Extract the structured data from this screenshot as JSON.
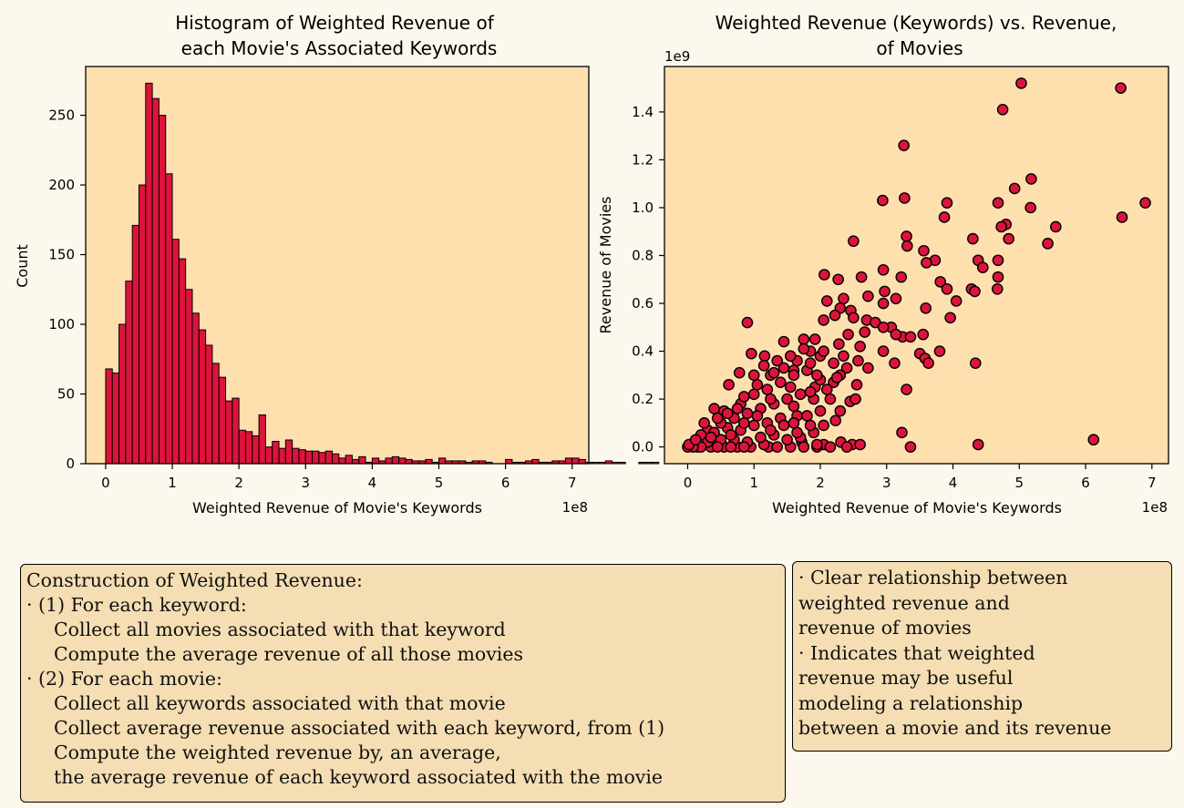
{
  "colors": {
    "figure_bg": "#fdf8ee",
    "axes_bg": "#fde0ae",
    "bar": "#dc143c",
    "point": "#dc143c",
    "edge": "#000000",
    "textbox_bg": "#f5deb3"
  },
  "chart_data": [
    {
      "type": "bar",
      "title_lines": [
        "Histogram of Weighted Revenue of",
        "each Movie's Associated Keywords"
      ],
      "xlabel": "Weighted Revenue of Movie's Keywords",
      "ylabel": "Count",
      "x_offset_text": "1e8",
      "xlim": [
        -0.3,
        7.25
      ],
      "ylim": [
        0,
        285
      ],
      "xticks": [
        0,
        1,
        2,
        3,
        4,
        5,
        6,
        7
      ],
      "yticks": [
        0,
        50,
        100,
        150,
        200,
        250
      ],
      "bin_start": 0,
      "bin_width": 0.1,
      "counts": [
        68,
        65,
        100,
        131,
        171,
        200,
        273,
        262,
        250,
        208,
        161,
        147,
        125,
        108,
        96,
        85,
        72,
        62,
        45,
        47,
        24,
        23,
        20,
        35,
        12,
        16,
        11,
        17,
        11,
        10,
        9,
        9,
        8,
        9,
        7,
        4,
        6,
        3,
        5,
        1,
        4,
        2,
        4,
        5,
        4,
        3,
        2,
        2,
        3,
        1,
        4,
        2,
        2,
        2,
        1,
        2,
        2,
        1,
        0,
        0,
        3,
        1,
        1,
        2,
        3,
        1,
        1,
        2,
        2,
        4,
        4,
        3,
        1,
        1,
        1,
        2,
        1,
        1,
        0,
        0,
        1,
        1,
        1,
        0,
        1,
        1,
        0,
        0,
        0,
        0,
        0,
        1,
        1,
        0,
        0,
        0,
        0,
        0,
        0,
        1,
        0,
        0,
        0,
        0,
        0,
        1,
        0,
        0,
        1,
        0
      ]
    },
    {
      "type": "scatter",
      "title_lines": [
        "Weighted Revenue (Keywords) vs. Revenue,",
        "of Movies"
      ],
      "xlabel": "Weighted Revenue of Movie's Keywords",
      "ylabel": "Revenue of Movies",
      "x_offset_text": "1e8",
      "y_offset_text": "1e9",
      "xlim": [
        -0.35,
        7.25
      ],
      "ylim": [
        -0.07,
        1.59
      ],
      "xticks": [
        0,
        1,
        2,
        3,
        4,
        5,
        6,
        7
      ],
      "yticks": [
        "0.0",
        "0.2",
        "0.4",
        "0.6",
        "0.8",
        "1.0",
        "1.2",
        "1.4"
      ],
      "points": [
        [
          5.03,
          1.52
        ],
        [
          6.53,
          1.5
        ],
        [
          4.75,
          1.41
        ],
        [
          3.26,
          1.26
        ],
        [
          5.18,
          1.12
        ],
        [
          4.93,
          1.08
        ],
        [
          3.27,
          1.04
        ],
        [
          2.94,
          1.03
        ],
        [
          3.91,
          1.02
        ],
        [
          4.68,
          1.02
        ],
        [
          6.9,
          1.02
        ],
        [
          5.17,
          1.0
        ],
        [
          4.8,
          0.93
        ],
        [
          4.73,
          0.92
        ],
        [
          5.55,
          0.92
        ],
        [
          6.55,
          0.96
        ],
        [
          3.87,
          0.96
        ],
        [
          3.3,
          0.88
        ],
        [
          4.3,
          0.87
        ],
        [
          4.84,
          0.87
        ],
        [
          2.5,
          0.86
        ],
        [
          5.43,
          0.85
        ],
        [
          3.31,
          0.84
        ],
        [
          3.56,
          0.82
        ],
        [
          3.73,
          0.78
        ],
        [
          4.38,
          0.78
        ],
        [
          4.68,
          0.78
        ],
        [
          3.6,
          0.77
        ],
        [
          4.45,
          0.75
        ],
        [
          2.95,
          0.74
        ],
        [
          3.22,
          0.71
        ],
        [
          2.62,
          0.71
        ],
        [
          4.68,
          0.71
        ],
        [
          2.06,
          0.72
        ],
        [
          2.27,
          0.7
        ],
        [
          3.81,
          0.69
        ],
        [
          3.91,
          0.66
        ],
        [
          4.28,
          0.66
        ],
        [
          4.33,
          0.65
        ],
        [
          4.67,
          0.66
        ],
        [
          2.97,
          0.65
        ],
        [
          2.72,
          0.63
        ],
        [
          3.14,
          0.62
        ],
        [
          2.35,
          0.62
        ],
        [
          2.95,
          0.6
        ],
        [
          2.1,
          0.61
        ],
        [
          2.3,
          0.58
        ],
        [
          2.46,
          0.57
        ],
        [
          3.59,
          0.58
        ],
        [
          4.05,
          0.61
        ],
        [
          2.22,
          0.55
        ],
        [
          3.96,
          0.54
        ],
        [
          2.5,
          0.54
        ],
        [
          2.7,
          0.53
        ],
        [
          0.9,
          0.52
        ],
        [
          2.05,
          0.53
        ],
        [
          2.83,
          0.52
        ],
        [
          3.07,
          0.5
        ],
        [
          2.95,
          0.5
        ],
        [
          2.42,
          0.47
        ],
        [
          2.67,
          0.48
        ],
        [
          1.75,
          0.45
        ],
        [
          1.45,
          0.44
        ],
        [
          1.92,
          0.45
        ],
        [
          3.24,
          0.46
        ],
        [
          3.55,
          0.47
        ],
        [
          2.28,
          0.43
        ],
        [
          3.36,
          0.46
        ],
        [
          3.14,
          0.47
        ],
        [
          2.6,
          0.42
        ],
        [
          3.8,
          0.4
        ],
        [
          3.5,
          0.39
        ],
        [
          0.96,
          0.39
        ],
        [
          1.16,
          0.38
        ],
        [
          1.85,
          0.4
        ],
        [
          2.0,
          0.38
        ],
        [
          2.95,
          0.4
        ],
        [
          3.58,
          0.37
        ],
        [
          3.63,
          0.35
        ],
        [
          4.34,
          0.35
        ],
        [
          3.12,
          0.35
        ],
        [
          2.4,
          0.33
        ],
        [
          2.57,
          0.36
        ],
        [
          0.78,
          0.31
        ],
        [
          1.6,
          0.32
        ],
        [
          2.3,
          0.3
        ],
        [
          2.72,
          0.33
        ],
        [
          3.3,
          0.24
        ],
        [
          2.2,
          0.27
        ],
        [
          1.92,
          0.25
        ],
        [
          2.45,
          0.19
        ],
        [
          2.53,
          0.2
        ],
        [
          2.23,
          0.11
        ],
        [
          1.65,
          0.13
        ],
        [
          3.23,
          0.06
        ],
        [
          6.12,
          0.03
        ],
        [
          4.38,
          0.01
        ],
        [
          3.36,
          0.0
        ],
        [
          2.48,
          0.01
        ],
        [
          2.31,
          0.02
        ],
        [
          2.05,
          0.01
        ],
        [
          1.72,
          0.02
        ],
        [
          1.22,
          0.0
        ],
        [
          0.62,
          0.26
        ],
        [
          0.4,
          0.16
        ],
        [
          0.55,
          0.15
        ],
        [
          0.3,
          0.07
        ],
        [
          0.2,
          0.05
        ],
        [
          0.1,
          0.02
        ],
        [
          0.05,
          0.01
        ],
        [
          0.15,
          0.0
        ],
        [
          0.35,
          0.0
        ],
        [
          0.55,
          0.0
        ],
        [
          0.75,
          0.0
        ],
        [
          0.95,
          0.0
        ],
        [
          1.15,
          0.01
        ],
        [
          1.35,
          0.0
        ],
        [
          1.55,
          0.0
        ],
        [
          1.75,
          0.0
        ],
        [
          1.95,
          0.0
        ],
        [
          2.15,
          0.0
        ],
        [
          0.3,
          0.02
        ],
        [
          0.5,
          0.03
        ],
        [
          0.7,
          0.03
        ],
        [
          0.9,
          0.02
        ],
        [
          1.1,
          0.04
        ],
        [
          1.3,
          0.05
        ],
        [
          1.5,
          0.03
        ],
        [
          1.7,
          0.04
        ],
        [
          1.9,
          0.06
        ],
        [
          0.4,
          0.06
        ],
        [
          0.6,
          0.08
        ],
        [
          0.8,
          0.07
        ],
        [
          1.0,
          0.09
        ],
        [
          1.2,
          0.1
        ],
        [
          1.4,
          0.12
        ],
        [
          1.6,
          0.1
        ],
        [
          1.8,
          0.13
        ],
        [
          2.0,
          0.15
        ],
        [
          0.5,
          0.1
        ],
        [
          0.7,
          0.12
        ],
        [
          0.9,
          0.14
        ],
        [
          1.1,
          0.16
        ],
        [
          1.3,
          0.18
        ],
        [
          1.5,
          0.2
        ],
        [
          1.7,
          0.22
        ],
        [
          1.9,
          0.2
        ],
        [
          2.1,
          0.24
        ],
        [
          0.6,
          0.14
        ],
        [
          0.8,
          0.18
        ],
        [
          1.0,
          0.22
        ],
        [
          1.2,
          0.24
        ],
        [
          1.4,
          0.27
        ],
        [
          1.6,
          0.3
        ],
        [
          1.8,
          0.32
        ],
        [
          2.0,
          0.28
        ],
        [
          2.2,
          0.35
        ],
        [
          0.85,
          0.21
        ],
        [
          1.05,
          0.26
        ],
        [
          1.25,
          0.3
        ],
        [
          1.45,
          0.33
        ],
        [
          1.65,
          0.36
        ],
        [
          1.85,
          0.35
        ],
        [
          2.05,
          0.4
        ],
        [
          1.15,
          0.34
        ],
        [
          1.35,
          0.36
        ],
        [
          1.55,
          0.38
        ],
        [
          1.75,
          0.41
        ],
        [
          1.25,
          0.2
        ],
        [
          1.55,
          0.25
        ],
        [
          1.85,
          0.23
        ],
        [
          2.15,
          0.2
        ],
        [
          0.45,
          0.12
        ],
        [
          0.65,
          0.05
        ],
        [
          0.85,
          0.1
        ],
        [
          1.05,
          0.13
        ],
        [
          1.25,
          0.07
        ],
        [
          1.45,
          0.09
        ],
        [
          1.65,
          0.06
        ],
        [
          1.85,
          0.09
        ],
        [
          2.05,
          0.09
        ],
        [
          2.3,
          0.15
        ],
        [
          2.55,
          0.26
        ],
        [
          2.35,
          0.38
        ],
        [
          1.95,
          0.3
        ],
        [
          2.25,
          0.29
        ],
        [
          0.25,
          0.1
        ],
        [
          0.35,
          0.04
        ],
        [
          0.75,
          0.16
        ],
        [
          1.95,
          0.01
        ],
        [
          2.4,
          0.0
        ],
        [
          2.6,
          0.01
        ],
        [
          1.0,
          0.3
        ],
        [
          1.3,
          0.31
        ],
        [
          1.6,
          0.17
        ],
        [
          0.2,
          0.0
        ],
        [
          0.08,
          0.0
        ],
        [
          0.0,
          0.0
        ],
        [
          0.02,
          0.01
        ],
        [
          0.12,
          0.03
        ],
        [
          0.45,
          0.0
        ],
        [
          0.65,
          0.0
        ],
        [
          0.85,
          0.0
        ]
      ]
    }
  ],
  "textbox_construction": {
    "title": "Construction of Weighted Revenue:",
    "step1": "· (1) For each keyword:",
    "step1_a": "Collect all movies associated with that keyword",
    "step1_b": "Compute the average revenue of all those movies",
    "step2": "· (2) For each movie:",
    "step2_a": "Collect all keywords associated with that movie",
    "step2_b": "Collect average revenue associated with each keyword, from (1)",
    "step2_c": "Compute the weighted revenue by, an average,",
    "step2_d": "the average revenue of each keyword associated with the movie"
  },
  "textbox_conclusions": {
    "line1": "· Clear relationship between",
    "line2": "weighted revenue and",
    "line3": "revenue of movies",
    "line4": "· Indicates that weighted",
    "line5": "revenue may be useful",
    "line6": "modeling a relationship",
    "line7": "between a movie and its revenue"
  }
}
